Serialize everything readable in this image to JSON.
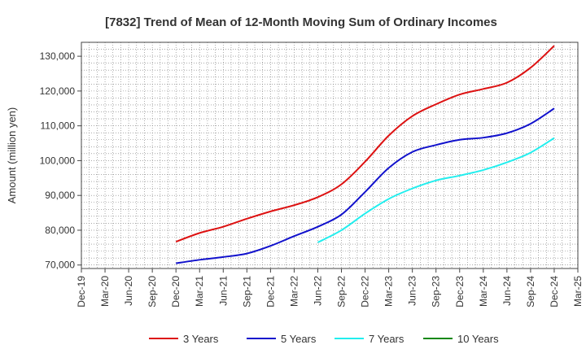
{
  "chart_data": {
    "type": "line",
    "title": "[7832]  Trend of Mean of 12-Month Moving Sum of Ordinary Incomes",
    "xlabel": "",
    "ylabel": "Amount (million yen)",
    "ylim": [
      69000,
      134000
    ],
    "yticks": [
      70000,
      80000,
      90000,
      100000,
      110000,
      120000,
      130000
    ],
    "ytick_labels": [
      "70,000",
      "80,000",
      "90,000",
      "100,000",
      "110,000",
      "120,000",
      "130,000"
    ],
    "x_tick_labels": [
      "Dec-19",
      "Mar-20",
      "Jun-20",
      "Sep-20",
      "Dec-20",
      "Mar-21",
      "Jun-21",
      "Sep-21",
      "Dec-21",
      "Mar-22",
      "Jun-22",
      "Sep-22",
      "Dec-22",
      "Mar-23",
      "Jun-23",
      "Sep-23",
      "Dec-23",
      "Mar-24",
      "Jun-24",
      "Sep-24",
      "Dec-24",
      "Mar-25"
    ],
    "x_points": [
      "Dec-19",
      "Mar-20",
      "Jun-20",
      "Sep-20",
      "Dec-20",
      "Mar-21",
      "Jun-21",
      "Sep-21",
      "Dec-21",
      "Mar-22",
      "Jun-22",
      "Sep-22",
      "Dec-22",
      "Mar-23",
      "Jun-23",
      "Sep-23",
      "Dec-23",
      "Mar-24",
      "Jun-24",
      "Sep-24",
      "Dec-24"
    ],
    "grid": true,
    "legend_position": "bottom",
    "series": [
      {
        "name": "3 Years",
        "color": "#dd1111",
        "values": [
          76700,
          79200,
          81000,
          83300,
          85400,
          87200,
          89500,
          93200,
          99700,
          107200,
          112800,
          116200,
          119000,
          120600,
          122400,
          126700,
          133000
        ]
      },
      {
        "name": "5 Years",
        "color": "#1111cc",
        "values": [
          70500,
          71500,
          72300,
          73300,
          75500,
          78300,
          81000,
          84500,
          91000,
          97900,
          102500,
          104500,
          106000,
          106600,
          107900,
          110600,
          115000
        ]
      },
      {
        "name": "7 Years",
        "color": "#22eeee",
        "values": [
          76500,
          80000,
          84800,
          89000,
          92000,
          94300,
          95700,
          97300,
          99500,
          102300,
          106500
        ]
      },
      {
        "name": "10 Years",
        "color": "#118811",
        "values": []
      }
    ]
  }
}
